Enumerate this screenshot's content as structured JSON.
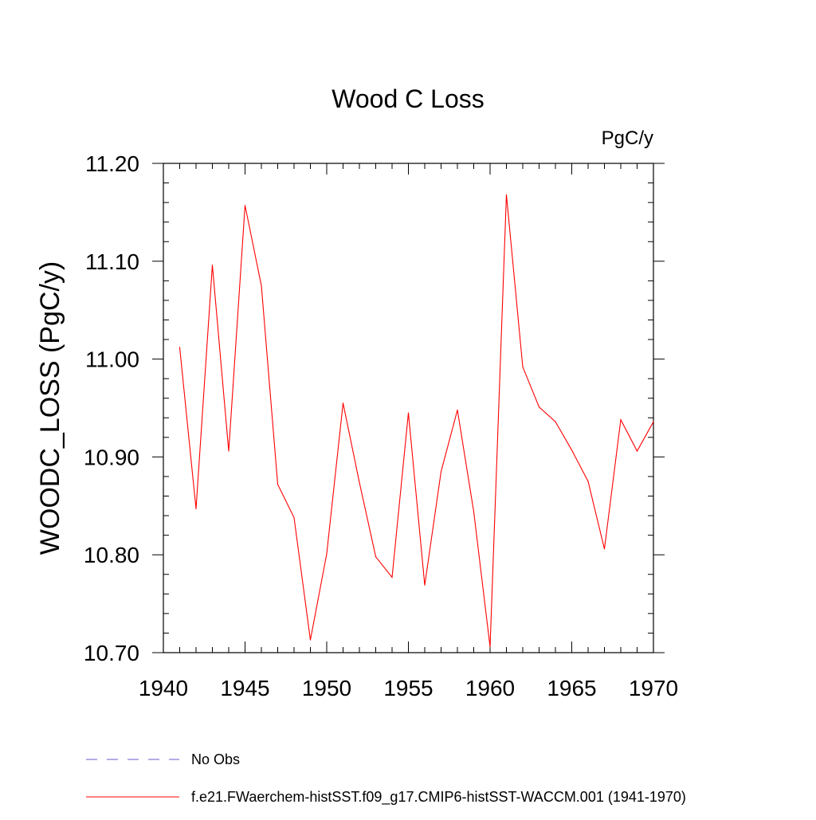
{
  "chart_data": {
    "type": "line",
    "title": "Wood C Loss",
    "units": "PgC/y",
    "xlabel": "",
    "ylabel": "WOODC_LOSS  (PgC/y)",
    "xlim": [
      1940,
      1970
    ],
    "ylim": [
      10.7,
      11.2
    ],
    "xticks": [
      1940,
      1945,
      1950,
      1955,
      1960,
      1965,
      1970
    ],
    "xtick_labels": [
      "1940",
      "1945",
      "1950",
      "1955",
      "1960",
      "1965",
      "1970"
    ],
    "yticks": [
      10.7,
      10.8,
      10.9,
      11.0,
      11.1,
      11.2
    ],
    "ytick_labels": [
      "10.70",
      "10.80",
      "10.90",
      "11.00",
      "11.10",
      "11.20"
    ],
    "grid": false,
    "legend_position": "bottom-left",
    "series": [
      {
        "name": "f.e21.FWaerchem-histSST.f09_g17.CMIP6-histSST-WACCM.001 (1941-1970)",
        "color": "#ff0000",
        "style": "solid",
        "x": [
          1941,
          1942,
          1943,
          1944,
          1945,
          1946,
          1947,
          1948,
          1949,
          1950,
          1951,
          1952,
          1953,
          1954,
          1955,
          1956,
          1957,
          1958,
          1959,
          1960,
          1961,
          1962,
          1963,
          1964,
          1965,
          1966,
          1967,
          1968,
          1969,
          1970
        ],
        "values": [
          11.012,
          10.847,
          11.096,
          10.906,
          11.157,
          11.075,
          10.872,
          10.838,
          10.713,
          10.801,
          10.955,
          10.874,
          10.798,
          10.777,
          10.945,
          10.769,
          10.885,
          10.948,
          10.844,
          10.706,
          11.168,
          10.992,
          10.951,
          10.936,
          10.907,
          10.875,
          10.806,
          10.938,
          10.906,
          10.936
        ]
      }
    ],
    "legend": [
      {
        "label": "No Obs",
        "color": "#6a5acd",
        "style": "dashed"
      },
      {
        "label": "f.e21.FWaerchem-histSST.f09_g17.CMIP6-histSST-WACCM.001 (1941-1970)",
        "color": "#ff0000",
        "style": "solid"
      }
    ]
  }
}
